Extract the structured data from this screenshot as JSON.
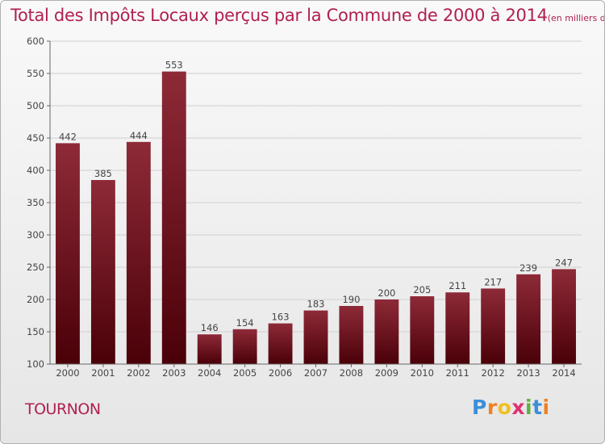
{
  "header": {
    "title": "Total des Impôts Locaux perçus par la Commune de 2000 à 2014",
    "unit": "(en milliers d'€)"
  },
  "footer": {
    "commune": "TOURNON",
    "logo_letters": [
      "P",
      "r",
      "o",
      "x",
      "i",
      "t",
      "i"
    ],
    "logo_colors": [
      "#3a8fd8",
      "#f08020",
      "#f0c020",
      "#e03070",
      "#60b040",
      "#3a8fd8",
      "#f08020"
    ]
  },
  "chart_data": {
    "type": "bar",
    "title": "Total des Impôts Locaux perçus par la Commune de 2000 à 2014",
    "subtitle": "(en milliers d'€)",
    "xlabel": "",
    "ylabel": "",
    "categories": [
      "2000",
      "2001",
      "2002",
      "2003",
      "2004",
      "2005",
      "2006",
      "2007",
      "2008",
      "2009",
      "2010",
      "2011",
      "2012",
      "2013",
      "2014"
    ],
    "values": [
      442,
      385,
      444,
      553,
      146,
      154,
      163,
      183,
      190,
      200,
      205,
      211,
      217,
      239,
      247
    ],
    "ylim": [
      100,
      600
    ],
    "yticks": [
      100,
      150,
      200,
      250,
      300,
      350,
      400,
      450,
      500,
      550,
      600
    ],
    "grid": true,
    "bar_color_top": "#8e2a38",
    "bar_color_bottom": "#4a0008"
  }
}
